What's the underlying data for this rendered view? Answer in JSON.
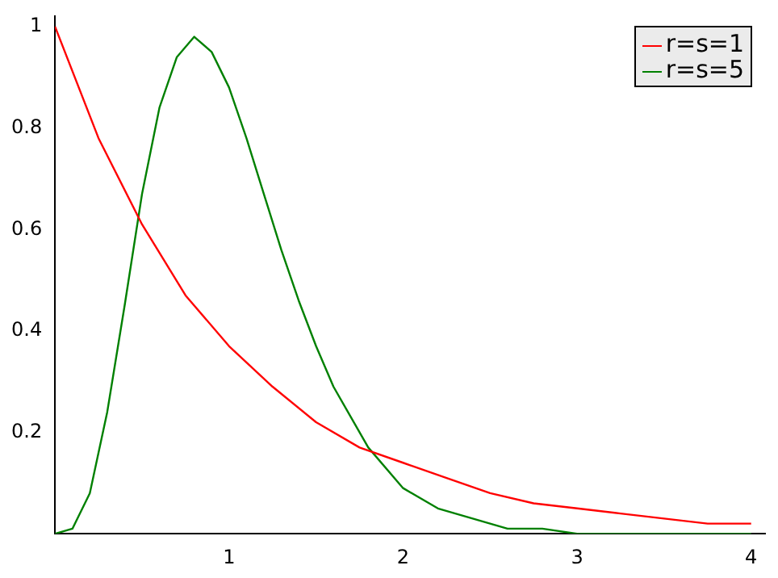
{
  "chart_data": {
    "type": "line",
    "x": [
      0,
      0.25,
      0.5,
      0.75,
      1,
      1.25,
      1.5,
      1.75,
      2,
      2.25,
      2.5,
      2.75,
      3,
      3.25,
      3.5,
      3.75,
      4
    ],
    "series": [
      {
        "name": "r=s=1",
        "color": "#ff0000",
        "values": [
          1,
          0.78,
          0.61,
          0.47,
          0.37,
          0.29,
          0.22,
          0.17,
          0.14,
          0.11,
          0.08,
          0.06,
          0.05,
          0.04,
          0.03,
          0.02,
          0.02
        ]
      },
      {
        "name": "r=s=5",
        "color": "#008000",
        "x": [
          0,
          0.1,
          0.2,
          0.3,
          0.4,
          0.5,
          0.6,
          0.7,
          0.8,
          0.9,
          1,
          1.1,
          1.2,
          1.3,
          1.4,
          1.5,
          1.6,
          1.8,
          2,
          2.2,
          2.4,
          2.6,
          2.8,
          3,
          3.5,
          4
        ],
        "values": [
          0,
          0.01,
          0.08,
          0.24,
          0.45,
          0.67,
          0.84,
          0.94,
          0.98,
          0.95,
          0.88,
          0.78,
          0.67,
          0.56,
          0.46,
          0.37,
          0.29,
          0.17,
          0.09,
          0.05,
          0.03,
          0.01,
          0.01,
          0,
          0,
          0
        ]
      }
    ],
    "xlim": [
      0,
      4.08
    ],
    "xticks": [
      1,
      2,
      3,
      4
    ],
    "ylim": [
      0,
      1.02
    ],
    "yticks": [
      0.2,
      0.4,
      0.6,
      0.8,
      1
    ],
    "grid": false,
    "legend": "top right",
    "marker": "none",
    "line_style": "solid"
  }
}
